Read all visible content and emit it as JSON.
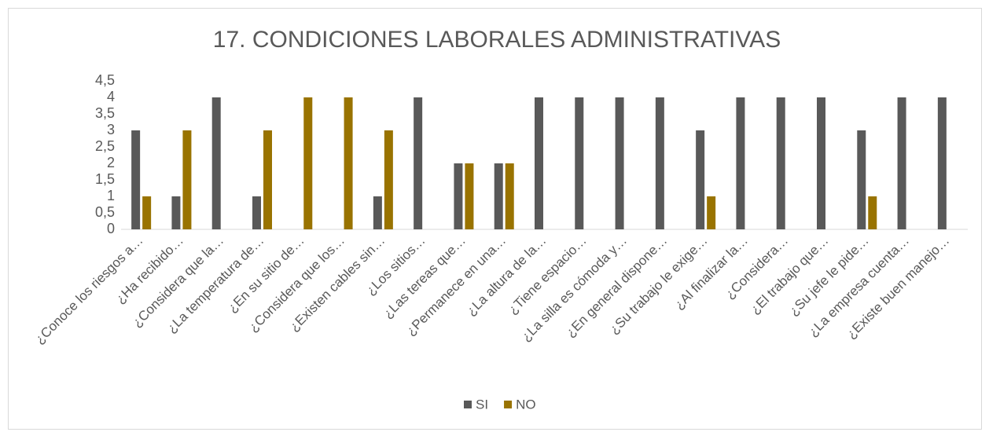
{
  "chart_data": {
    "type": "bar",
    "title": "17. CONDICIONES LABORALES ADMINISTRATIVAS",
    "categories": [
      "¿Conoce los riesgos a…",
      "¿Ha recibido…",
      "¿Considera que la…",
      "¿La temperatura de…",
      "¿En su sitio de…",
      "¿Considera que los…",
      "¿Existen cables sin…",
      "¿Los sitios…",
      "¿Las tereas que…",
      "¿Permanece en una…",
      "¿La altura de la…",
      "¿Tiene espacio…",
      "¿La silla es cómoda y…",
      "¿En general dispone…",
      "¿Su trabajo le exige…",
      "¿Al finalizar la…",
      "¿Considera…",
      "¿El trabajo que…",
      "¿Su jefe le pide…",
      "¿La empresa cuenta…",
      "¿Existe buen manejo…"
    ],
    "series": [
      {
        "name": "SI",
        "color": "#595959",
        "values": [
          3,
          1,
          4,
          1,
          0,
          0,
          1,
          4,
          2,
          2,
          4,
          4,
          4,
          4,
          3,
          4,
          4,
          4,
          3,
          4,
          4
        ]
      },
      {
        "name": "NO",
        "color": "#997300",
        "values": [
          1,
          3,
          0,
          3,
          4,
          4,
          3,
          0,
          2,
          2,
          0,
          0,
          0,
          0,
          1,
          0,
          0,
          0,
          1,
          0,
          0
        ]
      }
    ],
    "ylim": [
      0,
      4.5
    ],
    "yticks": [
      0,
      {
        "value": 0.5,
        "label": "0,5"
      },
      1,
      {
        "value": 1.5,
        "label": "1,5"
      },
      2,
      {
        "value": 2.5,
        "label": "2,5"
      },
      3,
      {
        "value": 3.5,
        "label": "3,5"
      },
      4,
      {
        "value": 4.5,
        "label": "4,5"
      }
    ],
    "grid": false,
    "legend": "bottom"
  }
}
